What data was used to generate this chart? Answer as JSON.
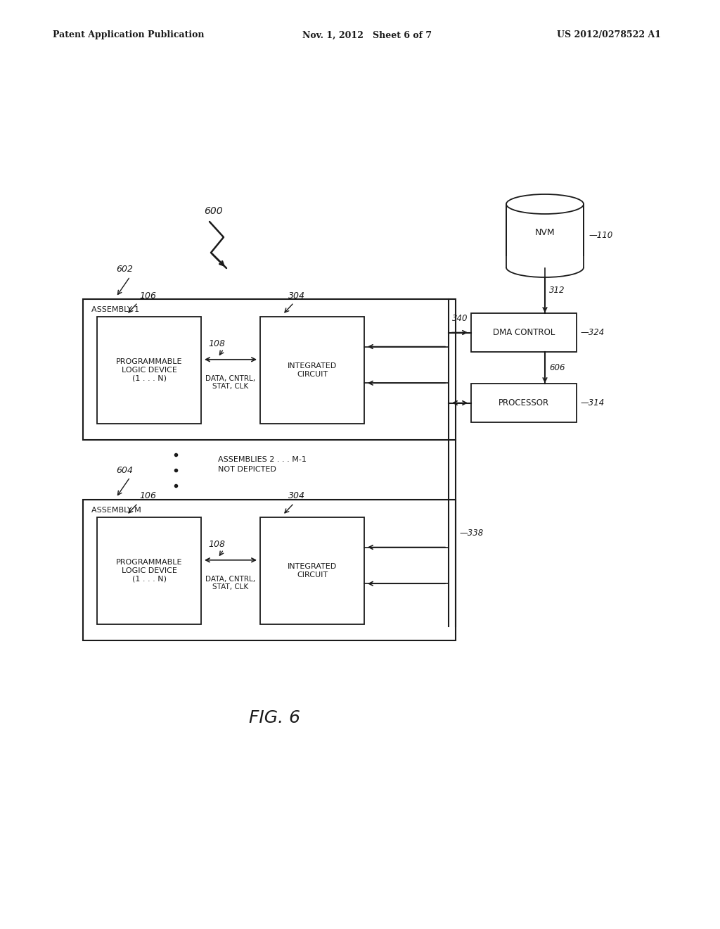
{
  "bg_color": "#ffffff",
  "header_left": "Patent Application Publication",
  "header_mid": "Nov. 1, 2012   Sheet 6 of 7",
  "header_right": "US 2012/0278522 A1",
  "fig_label": "FIG. 6",
  "diagram_label": "600",
  "assembly1_label": "602",
  "assembly1_text": "ASSEMBLY 1",
  "assemblyM_label": "604",
  "assemblyM_text": "ASSEMBLY M",
  "pld_text": "PROGRAMMABLE\nLOGIC DEVICE\n(1 . . . N)",
  "pld_label": "106",
  "ic_text": "INTEGRATED\nCIRCUIT",
  "ic_label": "304",
  "bus_text": "DATA, CNTRL,\nSTAT, CLK",
  "bus_label": "108",
  "nvm_text": "NVM",
  "nvm_label": "110",
  "dma_text": "DMA CONTROL",
  "dma_label": "324",
  "proc_text": "PROCESSOR",
  "proc_label": "314",
  "label_312": "312",
  "label_340": "340",
  "label_606": "606",
  "label_338": "338",
  "middle_text": "ASSEMBLIES 2 . . . M-1\nNOT DEPICTED"
}
